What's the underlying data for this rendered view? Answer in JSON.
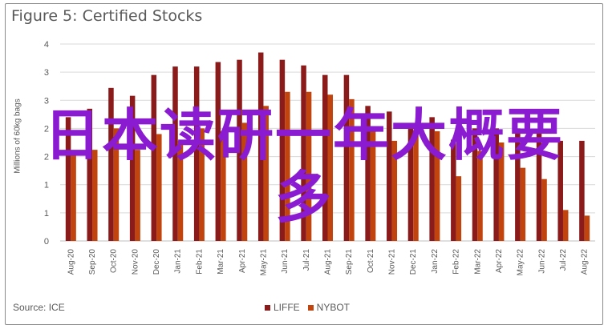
{
  "chart_data": {
    "type": "bar",
    "title": "Figure 5: Certified Stocks",
    "ylabel": "Millions of 60kg bags",
    "ylim": [
      0,
      3.5
    ],
    "yticks": [
      "0",
      "1",
      "1",
      "2",
      "2",
      "3",
      "3",
      "4"
    ],
    "categories": [
      "Aug-20",
      "Sep-20",
      "Oct-20",
      "Nov-20",
      "Dec-20",
      "Jan-21",
      "Feb-21",
      "Mar-21",
      "Apr-21",
      "May-21",
      "Jun-21",
      "Jul-21",
      "Aug-21",
      "Sep-21",
      "Oct-21",
      "Nov-21",
      "Dec-21",
      "Jan-22",
      "Feb-22",
      "Mar-22",
      "Apr-22",
      "May-22",
      "Jun-22",
      "Jul-22",
      "Aug-22"
    ],
    "series": [
      {
        "name": "LIFFE",
        "color": "#8b1a1a",
        "values": [
          2.2,
          2.35,
          2.72,
          2.58,
          2.95,
          3.1,
          3.1,
          3.18,
          3.22,
          3.35,
          3.22,
          3.12,
          2.95,
          2.95,
          2.4,
          2.3,
          2.0,
          2.2,
          1.8,
          2.0,
          2.0,
          2.0,
          1.95,
          1.78,
          1.78
        ]
      },
      {
        "name": "NYBOT",
        "color": "#c1440e",
        "values": [
          1.52,
          1.62,
          2.0,
          1.62,
          1.9,
          1.78,
          2.0,
          1.95,
          2.1,
          2.4,
          2.65,
          2.65,
          2.6,
          2.52,
          2.0,
          1.78,
          1.95,
          1.95,
          1.15,
          1.6,
          1.75,
          1.3,
          1.1,
          0.55,
          0.45
        ]
      }
    ],
    "grid": true,
    "legend_position": "bottom"
  },
  "footer": {
    "source": "Source: ICE"
  },
  "legend": [
    "LIFFE",
    "NYBOT"
  ],
  "overlay": {
    "line1": "日本读研一年大概要",
    "line2": "多"
  }
}
